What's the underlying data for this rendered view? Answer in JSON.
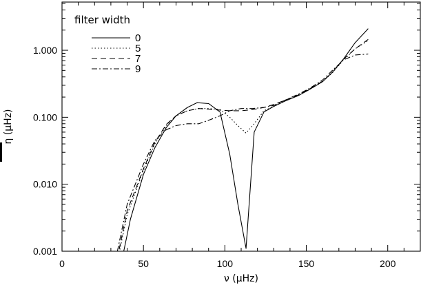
{
  "chart_data": {
    "type": "line",
    "title": "",
    "xlabel": "ν (μHz)",
    "ylabel": "η (μHz)",
    "xlim": [
      0,
      220
    ],
    "ylim": [
      0.001,
      5
    ],
    "yscale": "log",
    "x_ticks": [
      0,
      50,
      100,
      150,
      200
    ],
    "x_tick_labels": [
      "0",
      "50",
      "100",
      "150",
      "200"
    ],
    "y_ticks": [
      0.001,
      0.01,
      0.1,
      1
    ],
    "y_tick_labels": [
      "0.001",
      "0.010",
      "0.100",
      "1.000"
    ],
    "grid": false,
    "legend": {
      "title": "filter width",
      "placement": "top-left"
    },
    "series": [
      {
        "name": "0",
        "style": "solid",
        "x": [
          36,
          42,
          50,
          57,
          64,
          70,
          77,
          83,
          90,
          97,
          103,
          108,
          113,
          118,
          124,
          130,
          137,
          145,
          152,
          160,
          166,
          173,
          180,
          188
        ],
        "y": [
          0.0006,
          0.003,
          0.014,
          0.035,
          0.07,
          0.105,
          0.14,
          0.165,
          0.16,
          0.12,
          0.028,
          0.005,
          0.0011,
          0.06,
          0.12,
          0.145,
          0.175,
          0.21,
          0.26,
          0.34,
          0.47,
          0.75,
          1.3,
          2.1
        ]
      },
      {
        "name": "5",
        "style": "dotted",
        "x": [
          34,
          40,
          50,
          57,
          64,
          70,
          77,
          84,
          90,
          97,
          103,
          108,
          113,
          118,
          124,
          130,
          137,
          145,
          152,
          160,
          166,
          173,
          180,
          188
        ],
        "y": [
          0.0007,
          0.0035,
          0.016,
          0.04,
          0.075,
          0.105,
          0.125,
          0.135,
          0.135,
          0.13,
          0.1,
          0.075,
          0.058,
          0.08,
          0.125,
          0.145,
          0.175,
          0.21,
          0.26,
          0.34,
          0.46,
          0.72,
          1.05,
          1.4
        ]
      },
      {
        "name": "7",
        "style": "dashed",
        "x": [
          34,
          40,
          50,
          57,
          64,
          70,
          77,
          84,
          90,
          97,
          103,
          110,
          117,
          124,
          130,
          137,
          145,
          152,
          160,
          166,
          173,
          180,
          188
        ],
        "y": [
          0.0008,
          0.004,
          0.017,
          0.042,
          0.078,
          0.105,
          0.125,
          0.135,
          0.132,
          0.128,
          0.125,
          0.125,
          0.13,
          0.14,
          0.155,
          0.18,
          0.215,
          0.265,
          0.345,
          0.47,
          0.74,
          1.05,
          1.45
        ]
      },
      {
        "name": "9",
        "style": "dashdot",
        "x": [
          34,
          40,
          50,
          57,
          64,
          70,
          77,
          84,
          90,
          97,
          103,
          110,
          117,
          124,
          130,
          137,
          145,
          152,
          160,
          166,
          173,
          180,
          188
        ],
        "y": [
          0.001,
          0.005,
          0.02,
          0.045,
          0.065,
          0.075,
          0.08,
          0.08,
          0.09,
          0.105,
          0.125,
          0.135,
          0.135,
          0.14,
          0.15,
          0.18,
          0.22,
          0.27,
          0.36,
          0.5,
          0.72,
          0.85,
          0.88
        ]
      }
    ]
  }
}
